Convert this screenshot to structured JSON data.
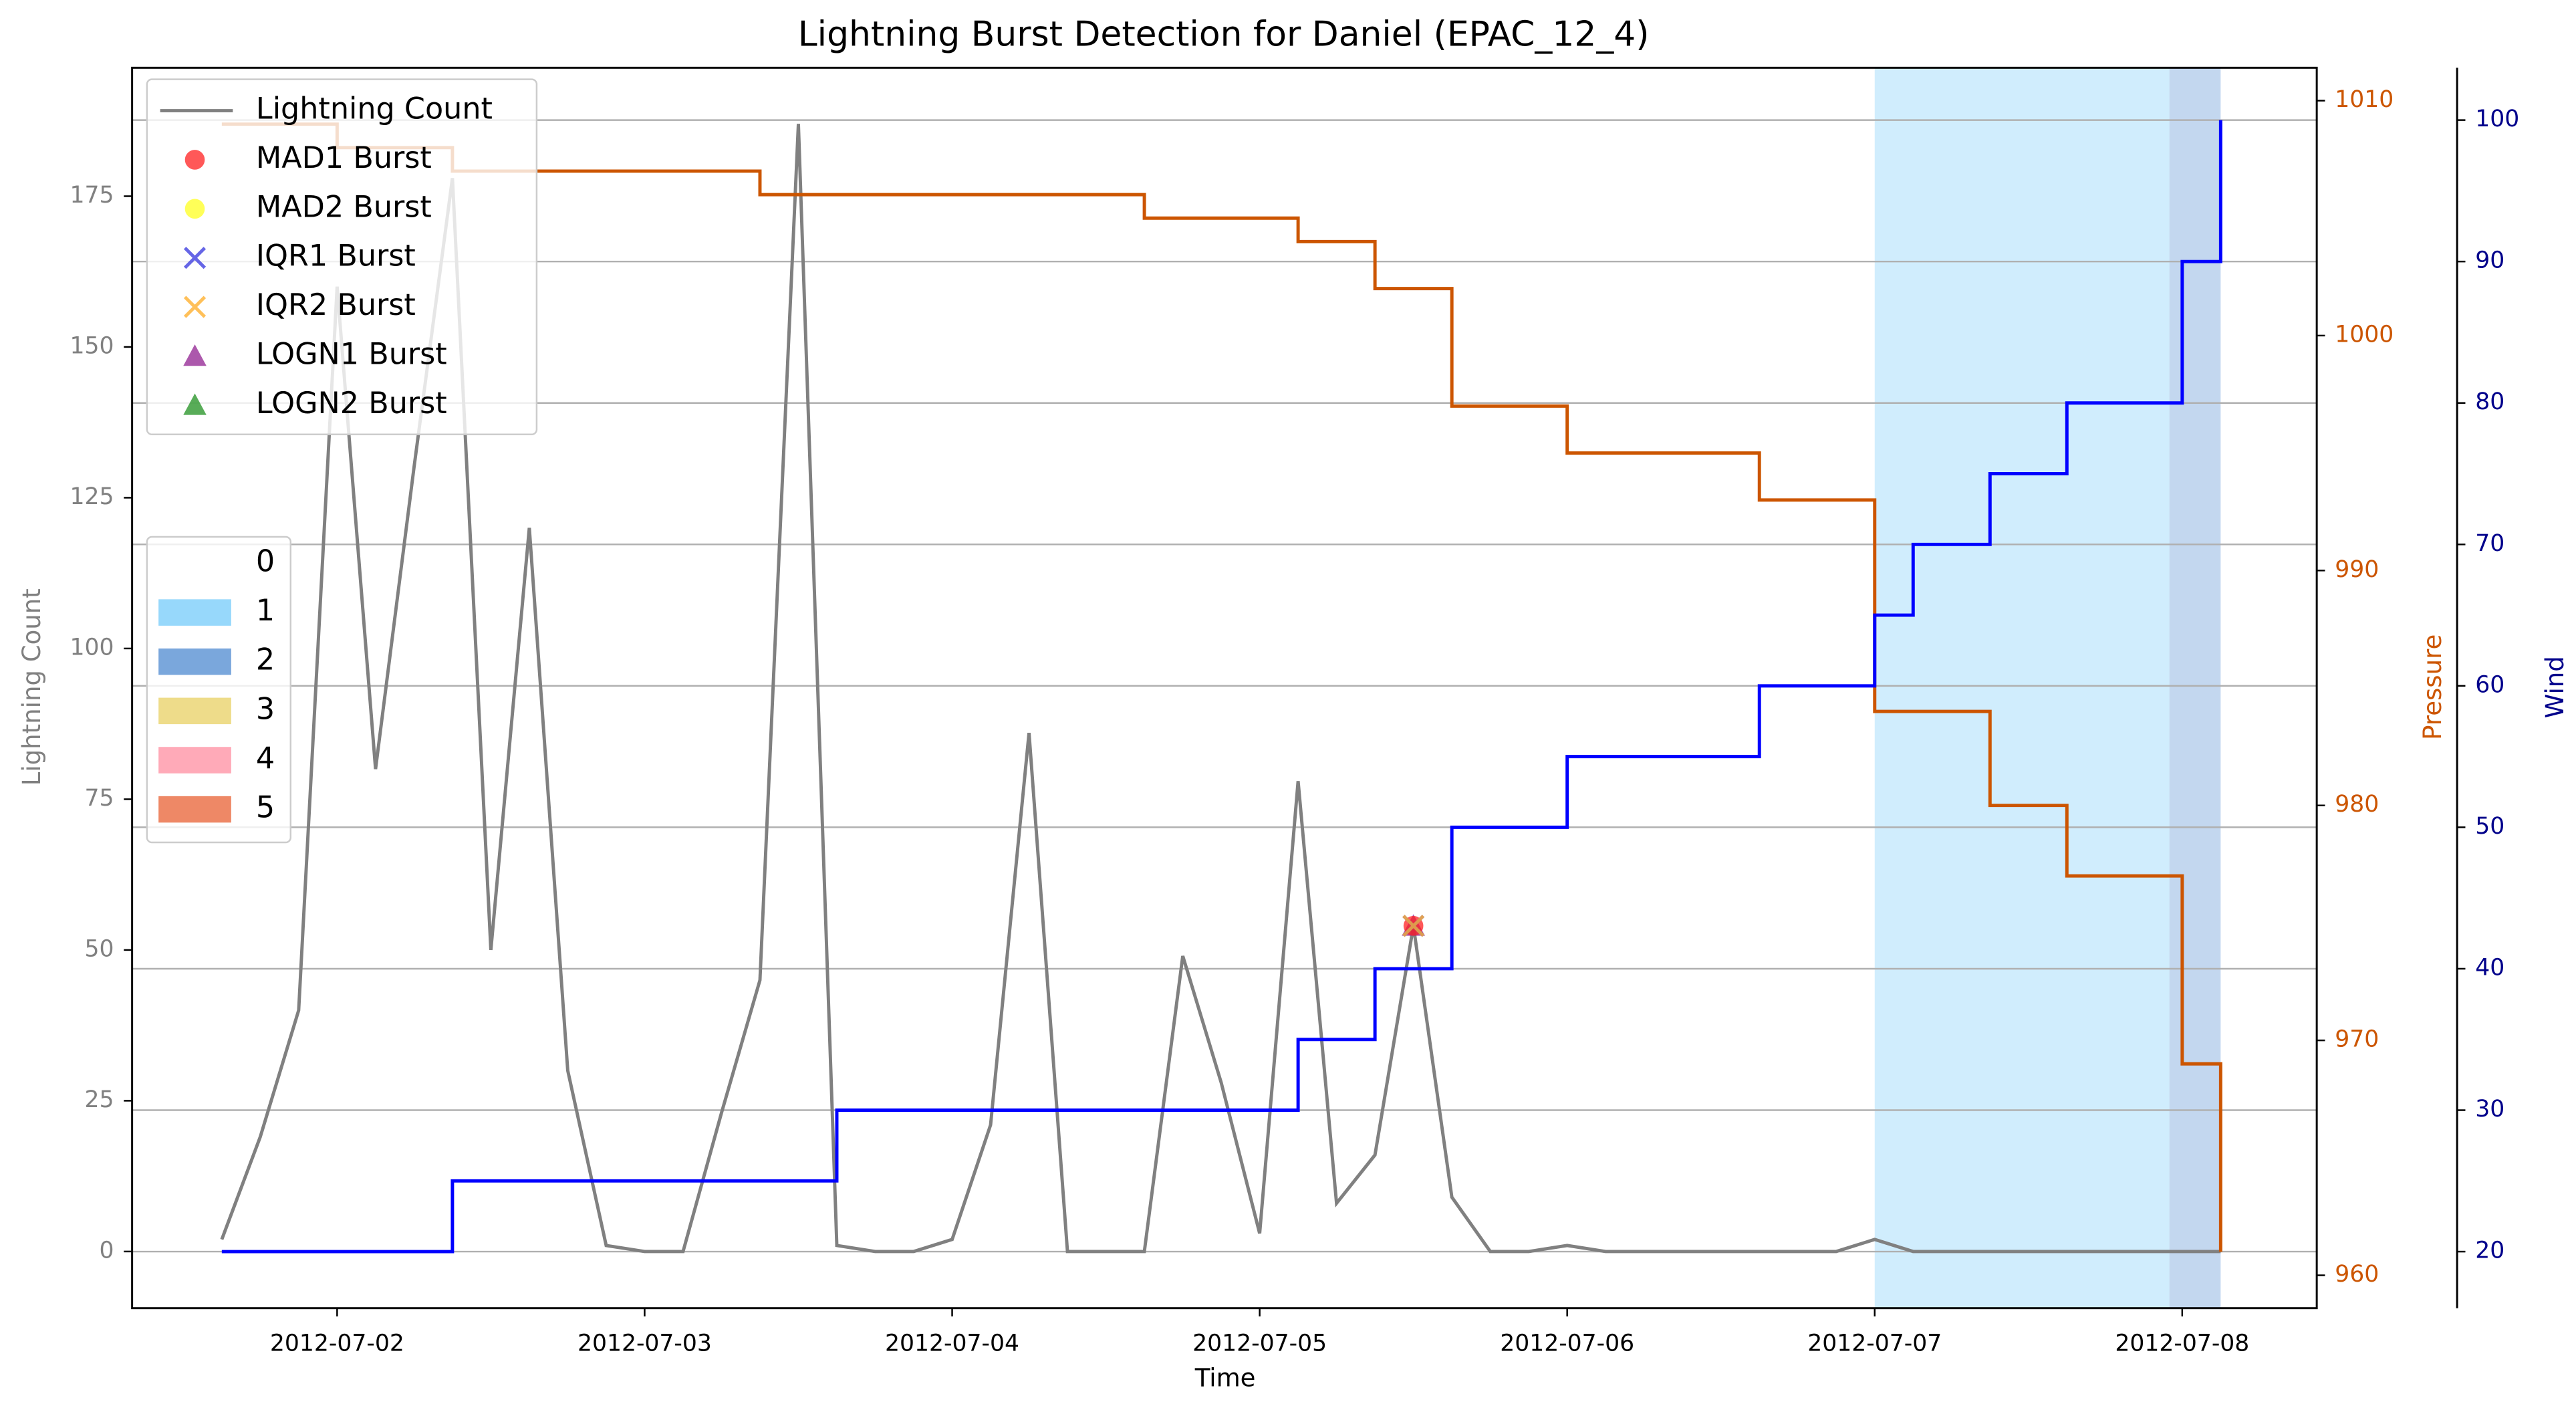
{
  "chart_data": {
    "type": "line",
    "title": "Lightning Burst Detection for Daniel (EPAC_12_4)",
    "x_label": "Time",
    "y_label": "Lightning Count",
    "x": [
      "2012-07-01 15:00",
      "2012-07-01 18:00",
      "2012-07-01 21:00",
      "2012-07-02 00:00",
      "2012-07-02 03:00",
      "2012-07-02 06:00",
      "2012-07-02 09:00",
      "2012-07-02 12:00",
      "2012-07-02 15:00",
      "2012-07-02 18:00",
      "2012-07-02 21:00",
      "2012-07-03 00:00",
      "2012-07-03 03:00",
      "2012-07-03 06:00",
      "2012-07-03 09:00",
      "2012-07-03 12:00",
      "2012-07-03 15:00",
      "2012-07-03 18:00",
      "2012-07-03 21:00",
      "2012-07-04 00:00",
      "2012-07-04 03:00",
      "2012-07-04 06:00",
      "2012-07-04 09:00",
      "2012-07-04 12:00",
      "2012-07-04 15:00",
      "2012-07-04 18:00",
      "2012-07-04 21:00",
      "2012-07-05 00:00",
      "2012-07-05 03:00",
      "2012-07-05 06:00",
      "2012-07-05 09:00",
      "2012-07-05 12:00",
      "2012-07-05 15:00",
      "2012-07-05 18:00",
      "2012-07-05 21:00",
      "2012-07-06 00:00",
      "2012-07-06 03:00",
      "2012-07-06 06:00",
      "2012-07-06 09:00",
      "2012-07-06 12:00",
      "2012-07-06 15:00",
      "2012-07-06 18:00",
      "2012-07-06 21:00",
      "2012-07-07 00:00",
      "2012-07-07 03:00",
      "2012-07-07 06:00",
      "2012-07-07 09:00",
      "2012-07-07 12:00",
      "2012-07-07 15:00",
      "2012-07-07 18:00",
      "2012-07-07 21:00",
      "2012-07-08 00:00",
      "2012-07-08 03:00"
    ],
    "xlim": [
      "2012-07-01 08:00",
      "2012-07-08 10:30"
    ],
    "xticks": [
      "2012-07-02",
      "2012-07-03",
      "2012-07-04",
      "2012-07-05",
      "2012-07-06",
      "2012-07-07",
      "2012-07-08"
    ],
    "ylim": [
      -9.4,
      196.3
    ],
    "yticks": [
      0,
      25,
      50,
      75,
      100,
      125,
      150,
      175
    ],
    "y2lim": [
      958.6,
      1011.4
    ],
    "y2ticks": [
      960,
      970,
      980,
      990,
      1000,
      1010
    ],
    "y3lim": [
      16,
      103.7
    ],
    "y3ticks": [
      20,
      30,
      40,
      50,
      60,
      70,
      80,
      90,
      100
    ],
    "y_color": "#808080",
    "y2_color": "#cc5500",
    "y3_color": "#00008b",
    "grid": "y3",
    "series": [
      {
        "name": "Lightning Count",
        "color": "#808080",
        "values": [
          2,
          19,
          40,
          160,
          80,
          130,
          178,
          50,
          120,
          30,
          1,
          0,
          0,
          23,
          45,
          187,
          1,
          0,
          0,
          2,
          21,
          86,
          0,
          0,
          0,
          49,
          28,
          3,
          78,
          8,
          16,
          54,
          9,
          0,
          0,
          1,
          0,
          0,
          0,
          0,
          0,
          0,
          0,
          2,
          0,
          0,
          0,
          0,
          0,
          0,
          0,
          0,
          0
        ]
      },
      {
        "name": "Pressure",
        "color": "#cc5500",
        "axis": "y2",
        "step": true,
        "values": [
          1009,
          1009,
          1009,
          1008,
          1008,
          1008,
          1007,
          1007,
          1007,
          1007,
          1007,
          1007,
          1007,
          1007,
          1006,
          1006,
          1006,
          1006,
          1006,
          1006,
          1006,
          1006,
          1006,
          1006,
          1005,
          1005,
          1005,
          1005,
          1004,
          1004,
          1002,
          1002,
          997,
          997,
          997,
          995,
          995,
          995,
          995,
          995,
          993,
          993,
          993,
          984,
          984,
          984,
          980,
          980,
          977,
          977,
          977,
          969,
          961
        ]
      },
      {
        "name": "Wind",
        "color": "#0000ff",
        "axis": "y3",
        "step": true,
        "values": [
          20,
          20,
          20,
          20,
          20,
          20,
          25,
          25,
          25,
          25,
          25,
          25,
          25,
          25,
          25,
          25,
          30,
          30,
          30,
          30,
          30,
          30,
          30,
          30,
          30,
          30,
          30,
          30,
          35,
          35,
          40,
          40,
          50,
          50,
          50,
          55,
          55,
          55,
          55,
          55,
          60,
          60,
          60,
          65,
          70,
          70,
          75,
          75,
          80,
          80,
          80,
          90,
          100
        ]
      }
    ],
    "markers": [
      {
        "name": "MAD1 Burst",
        "color": "#ff2020",
        "marker": "o",
        "x": [
          "2012-07-05 12:00"
        ],
        "values": [
          54
        ]
      },
      {
        "name": "MAD2 Burst",
        "color": "#ffff20",
        "marker": "o",
        "x": [],
        "values": []
      },
      {
        "name": "IQR1 Burst",
        "color": "#4040e0",
        "marker": "x",
        "x": [
          "2012-07-05 12:00"
        ],
        "values": [
          54
        ]
      },
      {
        "name": "IQR2 Burst",
        "color": "#ffb030",
        "marker": "x",
        "x": [
          "2012-07-05 12:00"
        ],
        "values": [
          54
        ]
      },
      {
        "name": "LOGN1 Burst",
        "color": "#902090",
        "marker": "^",
        "x": [
          "2012-07-05 12:00"
        ],
        "values": [
          54
        ]
      },
      {
        "name": "LOGN2 Burst",
        "color": "#209020",
        "marker": "^",
        "x": [],
        "values": []
      }
    ],
    "shading": {
      "categories": [
        "0",
        "1",
        "2",
        "3",
        "4",
        "5"
      ],
      "colors": [
        null,
        "#97d8fb",
        "#7aa7dc",
        "#eedc8a",
        "#ffaab8",
        "#ee8866"
      ],
      "spans": [
        {
          "start": "2012-07-07 00:00",
          "end": "2012-07-07 23:00",
          "category": 1
        },
        {
          "start": "2012-07-07 23:00",
          "end": "2012-07-08 03:00",
          "category": 2
        }
      ]
    }
  }
}
